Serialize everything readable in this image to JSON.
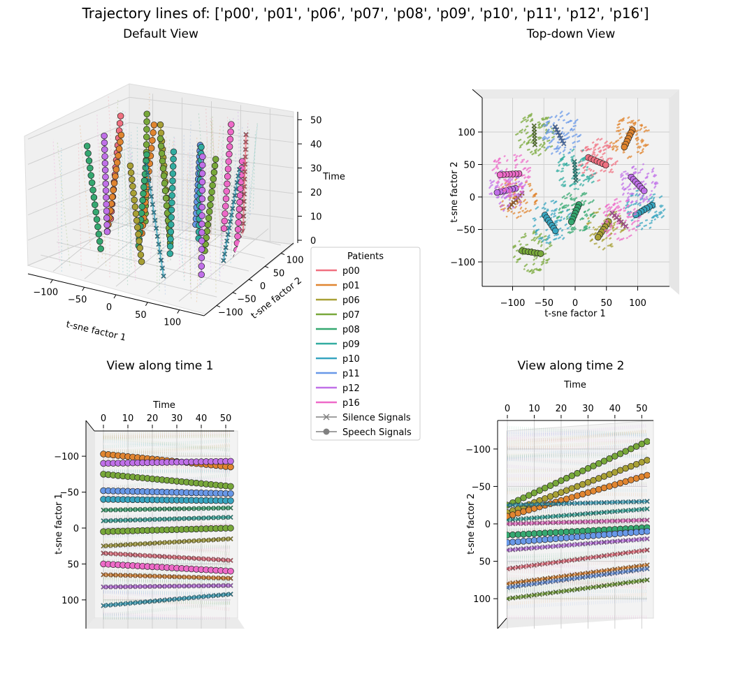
{
  "title": "Trajectory lines of: ['p00', 'p01', 'p06', 'p07', 'p08', 'p09', 'p10', 'p11', 'p12', 'p16']",
  "chart_data": [
    {
      "type": "scatter",
      "title": "Default View",
      "xlabel": "t-sne factor 1",
      "ylabel": "t-sne factor 2",
      "zlabel": "Time",
      "x_ticks": [
        "−100",
        "−50",
        "0",
        "50",
        "100"
      ],
      "y_ticks": [
        "−100",
        "−50",
        "0",
        "50",
        "100"
      ],
      "z_ticks": [
        "0",
        "10",
        "20",
        "30",
        "40",
        "50"
      ],
      "xlim": [
        -140,
        140
      ],
      "ylim": [
        -140,
        140
      ],
      "zlim": [
        0,
        52
      ],
      "grid": true
    },
    {
      "type": "scatter",
      "title": "Top-down View",
      "xlabel": "t-sne factor 1",
      "ylabel": "t-sne factor 2",
      "x_ticks": [
        "−100",
        "−50",
        "0",
        "50",
        "100"
      ],
      "y_ticks": [
        "−100",
        "−50",
        "0",
        "50",
        "100"
      ],
      "xlim": [
        -140,
        140
      ],
      "ylim": [
        -140,
        140
      ],
      "grid": true,
      "clusters": [
        {
          "patient": "p00",
          "cx": 35,
          "cy": 55
        },
        {
          "patient": "p01",
          "cx": -95,
          "cy": -5
        },
        {
          "patient": "p01",
          "cx": 85,
          "cy": 90
        },
        {
          "patient": "p06",
          "cx": 45,
          "cy": -50
        },
        {
          "patient": "p07",
          "cx": -65,
          "cy": 95
        },
        {
          "patient": "p07",
          "cx": -70,
          "cy": -85
        },
        {
          "patient": "p08",
          "cx": 0,
          "cy": -25
        },
        {
          "patient": "p09",
          "cx": 0,
          "cy": 40
        },
        {
          "patient": "p10",
          "cx": -40,
          "cy": -40
        },
        {
          "patient": "p10",
          "cx": 110,
          "cy": -20
        },
        {
          "patient": "p11",
          "cx": -25,
          "cy": 95
        },
        {
          "patient": "p12",
          "cx": -110,
          "cy": 10
        },
        {
          "patient": "p12",
          "cx": 100,
          "cy": 20
        },
        {
          "patient": "p16",
          "cx": 70,
          "cy": -35
        },
        {
          "patient": "p16",
          "cx": -105,
          "cy": 35
        }
      ]
    },
    {
      "type": "line",
      "title": "View along time 1",
      "xlabel": "Time",
      "ylabel": "t-sne factor 1",
      "x_ticks": [
        "0",
        "10",
        "20",
        "30",
        "40",
        "50"
      ],
      "y_ticks": [
        "−100",
        "−50",
        "0",
        "50",
        "100"
      ],
      "xlim": [
        0,
        52
      ],
      "ylim": [
        -140,
        140
      ],
      "series": [
        {
          "patient": "p01",
          "marker": "o",
          "y_start": -103,
          "y_end": -85
        },
        {
          "patient": "p12",
          "marker": "o",
          "y_start": -90,
          "y_end": -93
        },
        {
          "patient": "p07",
          "marker": "o",
          "y_start": -75,
          "y_end": -58
        },
        {
          "patient": "p11",
          "marker": "o",
          "y_start": -52,
          "y_end": -48
        },
        {
          "patient": "p10",
          "marker": "o",
          "y_start": -40,
          "y_end": -38
        },
        {
          "patient": "p08",
          "marker": "x",
          "y_start": -25,
          "y_end": -28
        },
        {
          "patient": "p09",
          "marker": "x",
          "y_start": -10,
          "y_end": -15
        },
        {
          "patient": "p07",
          "marker": "o",
          "y_start": 5,
          "y_end": 0
        },
        {
          "patient": "p06",
          "marker": "x",
          "y_start": 25,
          "y_end": 15
        },
        {
          "patient": "p00",
          "marker": "x",
          "y_start": 35,
          "y_end": 45
        },
        {
          "patient": "p16",
          "marker": "o",
          "y_start": 50,
          "y_end": 60
        },
        {
          "patient": "p01",
          "marker": "x",
          "y_start": 65,
          "y_end": 70
        },
        {
          "patient": "p12",
          "marker": "x",
          "y_start": 82,
          "y_end": 80
        },
        {
          "patient": "p10",
          "marker": "x",
          "y_start": 108,
          "y_end": 92
        }
      ]
    },
    {
      "type": "line",
      "title": "View along time 2",
      "xlabel": "Time",
      "ylabel": "t-sne factor 2",
      "x_ticks": [
        "0",
        "10",
        "20",
        "30",
        "40",
        "50"
      ],
      "y_ticks": [
        "−100",
        "−50",
        "0",
        "50",
        "100"
      ],
      "xlim": [
        0,
        52
      ],
      "ylim": [
        -140,
        140
      ],
      "series": [
        {
          "patient": "p07",
          "marker": "o",
          "y_start": -25,
          "y_end": -110
        },
        {
          "patient": "p06",
          "marker": "o",
          "y_start": -15,
          "y_end": -85
        },
        {
          "patient": "p01",
          "marker": "o",
          "y_start": -10,
          "y_end": -65
        },
        {
          "patient": "p10",
          "marker": "x",
          "y_start": -25,
          "y_end": -30
        },
        {
          "patient": "p09",
          "marker": "x",
          "y_start": -5,
          "y_end": -20
        },
        {
          "patient": "p16",
          "marker": "x",
          "y_start": 0,
          "y_end": -5
        },
        {
          "patient": "p08",
          "marker": "o",
          "y_start": 15,
          "y_end": 5
        },
        {
          "patient": "p11",
          "marker": "o",
          "y_start": 25,
          "y_end": 10
        },
        {
          "patient": "p12",
          "marker": "x",
          "y_start": 35,
          "y_end": 20
        },
        {
          "patient": "p00",
          "marker": "x",
          "y_start": 60,
          "y_end": 35
        },
        {
          "patient": "p01",
          "marker": "x",
          "y_start": 80,
          "y_end": 55
        },
        {
          "patient": "p11",
          "marker": "x",
          "y_start": 85,
          "y_end": 60
        },
        {
          "patient": "p07",
          "marker": "x",
          "y_start": 100,
          "y_end": 75
        }
      ]
    }
  ],
  "legend": {
    "title": "Patients",
    "entries": [
      {
        "label": "p00",
        "color": "#f07080"
      },
      {
        "label": "p01",
        "color": "#e08530"
      },
      {
        "label": "p06",
        "color": "#a8a035"
      },
      {
        "label": "p07",
        "color": "#78a83a"
      },
      {
        "label": "p08",
        "color": "#35a870"
      },
      {
        "label": "p09",
        "color": "#32aca0"
      },
      {
        "label": "p10",
        "color": "#38a5c0"
      },
      {
        "label": "p11",
        "color": "#6898e8"
      },
      {
        "label": "p12",
        "color": "#c070e8"
      },
      {
        "label": "p16",
        "color": "#ee6ac8"
      }
    ],
    "markers": [
      {
        "label": "Silence Signals",
        "marker": "x",
        "color": "#808080"
      },
      {
        "label": "Speech Signals",
        "marker": "o",
        "color": "#808080"
      }
    ]
  }
}
